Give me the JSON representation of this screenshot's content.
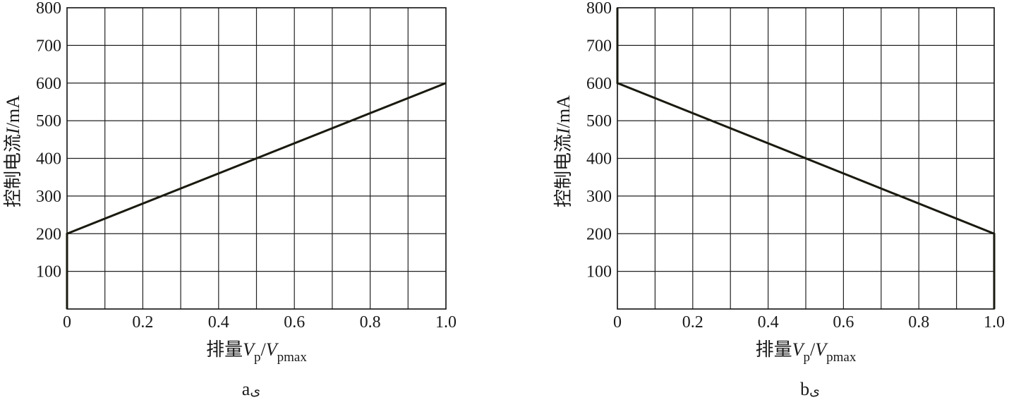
{
  "chart_data": [
    {
      "type": "line",
      "caption": "a",
      "caption_mark": "ی",
      "xlabel_prefix": "排量",
      "xlabel_v1": "V",
      "xlabel_sub1": "p",
      "xlabel_slash": "/",
      "xlabel_v2": "V",
      "xlabel_sub2": "pmax",
      "ylabel_prefix": "控制电流",
      "ylabel_var": "I",
      "ylabel_unit": "/mA",
      "xlim": [
        0,
        1.0
      ],
      "ylim": [
        0,
        800
      ],
      "xticks": [
        "0",
        "0.2",
        "0.4",
        "0.6",
        "0.8",
        "1.0"
      ],
      "yticks": [
        "100",
        "200",
        "300",
        "400",
        "500",
        "600",
        "700",
        "800"
      ],
      "grid": true,
      "line_color": "#1a1a10",
      "series": [
        {
          "x": [
            0,
            0,
            1.0
          ],
          "y": [
            0,
            200,
            600
          ]
        }
      ]
    },
    {
      "type": "line",
      "caption": "b",
      "caption_mark": "ی",
      "xlabel_prefix": "排量",
      "xlabel_v1": "V",
      "xlabel_sub1": "p",
      "xlabel_slash": "/",
      "xlabel_v2": "V",
      "xlabel_sub2": "pmax",
      "ylabel_prefix": "控制电流",
      "ylabel_var": "I",
      "ylabel_unit": "/mA",
      "xlim": [
        0,
        1.0
      ],
      "ylim": [
        0,
        800
      ],
      "xticks": [
        "0",
        "0.2",
        "0.4",
        "0.6",
        "0.8",
        "1.0"
      ],
      "yticks": [
        "100",
        "200",
        "300",
        "400",
        "500",
        "600",
        "700",
        "800"
      ],
      "grid": true,
      "line_color": "#1a1a10",
      "series": [
        {
          "x": [
            0,
            0,
            1.0,
            1.0
          ],
          "y": [
            800,
            600,
            200,
            0
          ]
        }
      ]
    }
  ]
}
